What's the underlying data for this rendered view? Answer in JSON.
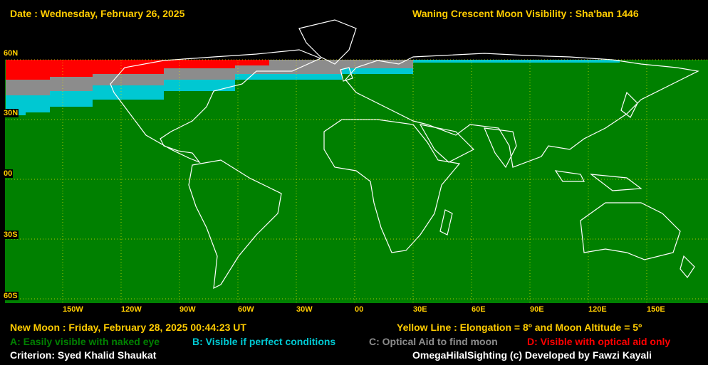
{
  "header": {
    "date": "Date : Wednesday, February 26, 2025",
    "title": "Waning Crescent Moon Visibility : Sha'ban 1446"
  },
  "map": {
    "latitude_labels": [
      "60N",
      "30N",
      "00",
      "30S",
      "60S"
    ],
    "longitude_labels": [
      "150W",
      "120W",
      "90W",
      "60W",
      "30W",
      "00",
      "30E",
      "60E",
      "90E",
      "120E",
      "150E"
    ],
    "zone_colors": {
      "A": "#008000",
      "B": "#00c8d2",
      "C": "#8c8c8c",
      "D": "#ff0000"
    }
  },
  "footer": {
    "new_moon": "New Moon : Friday, February 28, 2025  00:44:23  UT",
    "yellow_line": "Yellow Line : Elongation = 8º  and Moon Altitude = 5º",
    "legend": {
      "a": "A: Easily visible with naked eye",
      "b": "B: Visible if perfect conditions",
      "c": "C: Optical Aid to find moon",
      "d": "D: Visible with optical aid only"
    },
    "criterion": "Criterion: Syed Khalid Shaukat",
    "credit": "OmegaHilalSighting  (c)  Developed by Fawzi Kayali"
  }
}
